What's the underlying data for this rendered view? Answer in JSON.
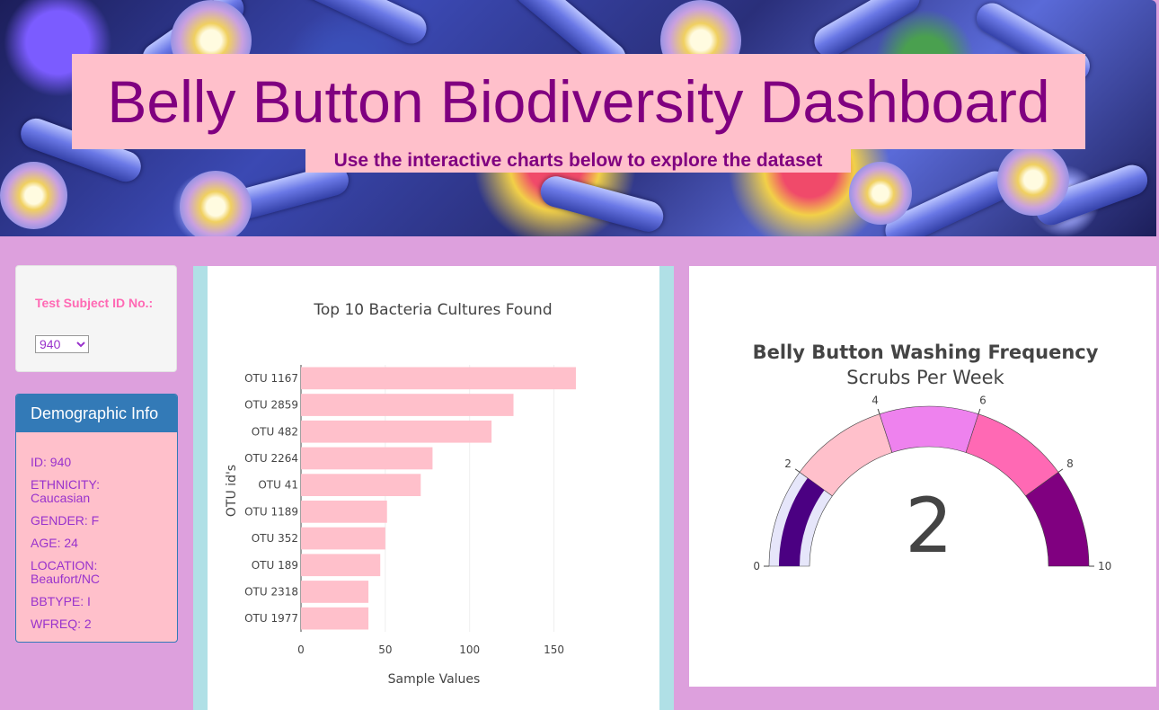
{
  "header": {
    "title": "Belly Button Biodiversity Dashboard",
    "subtitle": "Use the interactive charts below to explore the dataset"
  },
  "selector": {
    "label": "Test Subject ID No.:",
    "selected": "940"
  },
  "demographics": {
    "heading": "Demographic Info",
    "lines": [
      "ID: 940",
      "ETHNICITY: Caucasian",
      "GENDER: F",
      "AGE: 24",
      "LOCATION: Beaufort/NC",
      "BBTYPE: I",
      "WFREQ: 2"
    ]
  },
  "colors": {
    "bar": "#ffc0cb",
    "title_pink": "#ffc0cb",
    "title_purple": "#800080",
    "panel_primary": "#337ab7",
    "page_bg": "#dda0dd"
  },
  "chart_data": [
    {
      "type": "bar",
      "orientation": "horizontal",
      "title": "Top 10 Bacteria Cultures Found",
      "xlabel": "Sample Values",
      "ylabel": "OTU id's",
      "categories": [
        "OTU 1167",
        "OTU 2859",
        "OTU 482",
        "OTU 2264",
        "OTU 41",
        "OTU 1189",
        "OTU 352",
        "OTU 189",
        "OTU 2318",
        "OTU 1977"
      ],
      "values": [
        163,
        126,
        113,
        78,
        71,
        51,
        50,
        47,
        40,
        40
      ],
      "xticks": [
        0,
        50,
        100,
        150
      ],
      "xlim": [
        0,
        171
      ],
      "grid": "vertical"
    },
    {
      "type": "gauge",
      "title": "Belly Button Washing Frequency",
      "subtitle": "Scrubs Per Week",
      "value": 2,
      "value_label": "2",
      "range": [
        0,
        10
      ],
      "ticks": [
        "0",
        "2",
        "4",
        "6",
        "8",
        "10"
      ],
      "steps": [
        {
          "range": [
            0,
            2
          ],
          "color": "#e6e6fa"
        },
        {
          "range": [
            2,
            4
          ],
          "color": "#ffc0cb"
        },
        {
          "range": [
            4,
            6
          ],
          "color": "#ee82ee"
        },
        {
          "range": [
            6,
            8
          ],
          "color": "#ff69b4"
        },
        {
          "range": [
            8,
            10
          ],
          "color": "#800080"
        }
      ],
      "bar_color": "#4b0082"
    }
  ]
}
